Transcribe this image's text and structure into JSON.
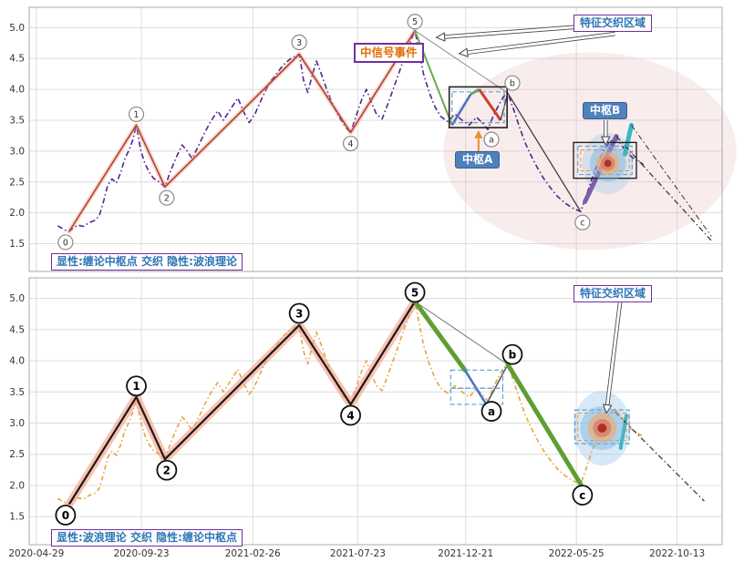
{
  "figure": {
    "bg": "#ffffff",
    "grid_color": "#dcdcdc",
    "border_color": "#a8a8a8",
    "tick_color": "#333333"
  },
  "labels": {
    "top_caption": "显性:缠论中枢点 交织 隐性:波浪理论",
    "bottom_caption": "显性:波浪理论 交织 隐性:缠论中枢点",
    "top_region": "特征交织区域",
    "bottom_region": "特征交织区域",
    "signal_event": "中信号事件",
    "pivot_a": "中枢A",
    "pivot_b": "中枢B"
  },
  "chart_data": {
    "type": "line",
    "x_range_days": [
      -10,
      960
    ],
    "y_range": [
      1.05,
      5.33
    ],
    "y_ticks": [
      1.5,
      2.0,
      2.5,
      3.0,
      3.5,
      4.0,
      4.5,
      5.0
    ],
    "x_ticks": [
      {
        "label": "2020-04-29",
        "day": 0
      },
      {
        "label": "2020-09-23",
        "day": 147
      },
      {
        "label": "2021-02-26",
        "day": 303
      },
      {
        "label": "2021-07-23",
        "day": 450
      },
      {
        "label": "2021-12-21",
        "day": 601
      },
      {
        "label": "2022-05-25",
        "day": 756
      },
      {
        "label": "2022-10-13",
        "day": 897
      }
    ],
    "price": [
      [
        30,
        1.79
      ],
      [
        36,
        1.75
      ],
      [
        42,
        1.71
      ],
      [
        46,
        1.7
      ],
      [
        52,
        1.76
      ],
      [
        58,
        1.8
      ],
      [
        66,
        1.78
      ],
      [
        74,
        1.84
      ],
      [
        82,
        1.88
      ],
      [
        88,
        1.95
      ],
      [
        94,
        2.18
      ],
      [
        100,
        2.45
      ],
      [
        106,
        2.55
      ],
      [
        112,
        2.48
      ],
      [
        118,
        2.65
      ],
      [
        124,
        2.88
      ],
      [
        130,
        3.02
      ],
      [
        135,
        3.18
      ],
      [
        140,
        3.42
      ],
      [
        146,
        3.02
      ],
      [
        152,
        2.8
      ],
      [
        158,
        2.66
      ],
      [
        164,
        2.56
      ],
      [
        172,
        2.5
      ],
      [
        180,
        2.42
      ],
      [
        188,
        2.68
      ],
      [
        196,
        2.9
      ],
      [
        204,
        3.1
      ],
      [
        210,
        3.02
      ],
      [
        218,
        2.88
      ],
      [
        226,
        3.06
      ],
      [
        234,
        3.26
      ],
      [
        244,
        3.48
      ],
      [
        254,
        3.65
      ],
      [
        262,
        3.5
      ],
      [
        272,
        3.68
      ],
      [
        282,
        3.86
      ],
      [
        290,
        3.64
      ],
      [
        298,
        3.46
      ],
      [
        306,
        3.6
      ],
      [
        316,
        3.86
      ],
      [
        326,
        4.1
      ],
      [
        336,
        4.25
      ],
      [
        346,
        4.4
      ],
      [
        356,
        4.5
      ],
      [
        364,
        4.55
      ],
      [
        368,
        4.57
      ],
      [
        374,
        4.15
      ],
      [
        380,
        3.95
      ],
      [
        386,
        4.22
      ],
      [
        392,
        4.46
      ],
      [
        398,
        4.28
      ],
      [
        406,
        4.02
      ],
      [
        414,
        3.78
      ],
      [
        424,
        3.55
      ],
      [
        432,
        3.4
      ],
      [
        440,
        3.3
      ],
      [
        448,
        3.58
      ],
      [
        456,
        3.85
      ],
      [
        462,
        4.0
      ],
      [
        468,
        3.82
      ],
      [
        476,
        3.6
      ],
      [
        484,
        3.52
      ],
      [
        492,
        3.76
      ],
      [
        500,
        4.02
      ],
      [
        508,
        4.28
      ],
      [
        516,
        4.55
      ],
      [
        524,
        4.78
      ],
      [
        530,
        4.95
      ],
      [
        536,
        4.6
      ],
      [
        542,
        4.25
      ],
      [
        550,
        3.95
      ],
      [
        558,
        3.72
      ],
      [
        566,
        3.56
      ],
      [
        576,
        3.48
      ],
      [
        586,
        3.6
      ],
      [
        596,
        3.5
      ],
      [
        606,
        3.42
      ],
      [
        616,
        3.55
      ],
      [
        626,
        3.44
      ],
      [
        632,
        3.35
      ],
      [
        640,
        3.58
      ],
      [
        648,
        3.76
      ],
      [
        654,
        3.88
      ],
      [
        660,
        3.94
      ],
      [
        668,
        3.68
      ],
      [
        676,
        3.4
      ],
      [
        684,
        3.14
      ],
      [
        692,
        2.94
      ],
      [
        700,
        2.76
      ],
      [
        710,
        2.56
      ],
      [
        720,
        2.4
      ],
      [
        730,
        2.26
      ],
      [
        740,
        2.16
      ],
      [
        750,
        2.08
      ],
      [
        762,
        2.02
      ],
      [
        770,
        2.28
      ],
      [
        778,
        2.56
      ],
      [
        786,
        2.8
      ],
      [
        794,
        3.0
      ],
      [
        802,
        3.14
      ],
      [
        810,
        3.22
      ],
      [
        818,
        3.12
      ],
      [
        826,
        2.98
      ],
      [
        834,
        2.9
      ],
      [
        842,
        2.84
      ],
      [
        850,
        2.78
      ]
    ],
    "wave_points": [
      {
        "label": "0",
        "day": 46,
        "value": 1.7
      },
      {
        "label": "1",
        "day": 140,
        "value": 3.42
      },
      {
        "label": "2",
        "day": 180,
        "value": 2.42
      },
      {
        "label": "3",
        "day": 368,
        "value": 4.57
      },
      {
        "label": "4",
        "day": 440,
        "value": 3.3
      },
      {
        "label": "5",
        "day": 530,
        "value": 4.95
      },
      {
        "label": "a",
        "day": 632,
        "value": 3.35
      },
      {
        "label": "b",
        "day": 660,
        "value": 3.94
      },
      {
        "label": "c",
        "day": 762,
        "value": 2.02
      }
    ],
    "label_offsets": {
      "0": [
        -4,
        12
      ],
      "1": [
        0,
        -12
      ],
      "2": [
        2,
        12
      ],
      "3": [
        0,
        -13
      ],
      "4": [
        0,
        12
      ],
      "5": [
        0,
        -10
      ],
      "a": [
        4,
        11
      ],
      "b": [
        5,
        -11
      ],
      "c": [
        2,
        12
      ]
    },
    "panels": [
      {
        "id": "top",
        "price_style": {
          "color": "#51258f",
          "width": 1.6,
          "dash": "6 3 1.5 3"
        },
        "impulse_style": {
          "color": "#a94438",
          "width": 1.6,
          "glow": "rgba(244,150,120,0.40)",
          "glow_width": 5
        },
        "wave_label_style": {
          "r": 8,
          "stroke": "#8a8a8a",
          "sw": 1.2,
          "font": 9.5,
          "color": "#333333",
          "bold": false
        },
        "ellipses": [
          {
            "name": "pink-region-ellipse",
            "day": 775,
            "value": 3.0,
            "rd": 205,
            "rv": 1.6,
            "fill": "rgba(232,186,186,0.28)"
          },
          {
            "name": "bullseye-halo",
            "day": 800,
            "value": 2.8,
            "rd": 36,
            "rv": 0.5,
            "fill": "rgba(155,200,235,0.35)"
          }
        ],
        "segments": [
          {
            "name": "trendline-5-b",
            "pts": [
              [
                530,
                4.95
              ],
              [
                660,
                3.94
              ]
            ],
            "color": "#909090",
            "w": 1
          },
          {
            "name": "green-leg",
            "pts": [
              [
                530,
                4.95
              ],
              [
                582,
                3.42
              ]
            ],
            "color": "#6aa84f",
            "w": 2
          },
          {
            "name": "blue-subwave",
            "pts": [
              [
                582,
                3.42
              ],
              [
                608,
                3.92
              ]
            ],
            "color": "#4472c4",
            "w": 2.5
          },
          {
            "name": "green-subwave",
            "pts": [
              [
                608,
                3.92
              ],
              [
                620,
                4.0
              ]
            ],
            "color": "#6aa84f",
            "w": 3
          },
          {
            "name": "red-subwave",
            "pts": [
              [
                620,
                4.0
              ],
              [
                650,
                3.5
              ]
            ],
            "color": "#cc4125",
            "w": 3
          },
          {
            "name": "black-leg",
            "pts": [
              [
                650,
                3.5
              ],
              [
                660,
                3.94
              ],
              [
                762,
                2.02
              ]
            ],
            "color": "#404040",
            "w": 1.3
          },
          {
            "name": "purple-thick-leg",
            "pts": [
              [
                768,
                2.18
              ],
              [
                812,
                3.24
              ]
            ],
            "color": "#7e5fa8",
            "w": 5,
            "cap": "round"
          },
          {
            "name": "teal-thick-leg",
            "pts": [
              [
                824,
                2.95
              ],
              [
                833,
                3.42
              ]
            ],
            "color": "#35b8c8",
            "w": 5,
            "cap": "round"
          },
          {
            "name": "forecast-line",
            "pts": [
              [
                812,
                3.24
              ],
              [
                945,
                1.55
              ]
            ],
            "color": "#303030",
            "w": 1.2,
            "dash": "6 3 1.5 3"
          },
          {
            "name": "forecast-line-2",
            "pts": [
              [
                833,
                3.42
              ],
              [
                945,
                1.62
              ]
            ],
            "color": "#303030",
            "w": 1,
            "dash": "6 3 1.5 3"
          }
        ],
        "rects": [
          {
            "name": "pivot-a-box",
            "d": [
              578,
              659
            ],
            "v": [
              3.38,
              4.04
            ],
            "color": "#222222",
            "w": 1.6
          },
          {
            "name": "pivot-a-range",
            "d": [
              582,
              655
            ],
            "v": [
              3.46,
              3.96
            ],
            "color": "#5b9bd5",
            "w": 1.2,
            "dash": "5 3"
          },
          {
            "name": "pivot-b-box",
            "d": [
              752,
              840
            ],
            "v": [
              2.56,
              3.14
            ],
            "color": "#222222",
            "w": 1.4
          },
          {
            "name": "pivot-b-range",
            "d": [
              758,
              834
            ],
            "v": [
              2.62,
              3.08
            ],
            "color": "#5b9bd5",
            "w": 1.1,
            "dash": "5 3"
          },
          {
            "name": "pivot-b-orange",
            "d": [
              762,
              830
            ],
            "v": [
              2.68,
              3.02
            ],
            "color": "#e69138",
            "w": 1,
            "dash": "4 3"
          }
        ],
        "bullseye": {
          "day": 800,
          "value": 2.8,
          "rings": [
            {
              "r": 20,
              "c": "rgba(120,180,225,0.45)"
            },
            {
              "r": 13,
              "c": "rgba(240,170,110,0.65)"
            },
            {
              "r": 8,
              "c": "rgba(220,120,100,0.75)"
            },
            {
              "r": 4,
              "c": "rgba(170,45,35,0.95)"
            }
          ]
        },
        "arrows": [
          {
            "from": [
              812,
              5.06
            ],
            "to": [
              560,
              4.84
            ],
            "kind": "hollow"
          },
          {
            "from": [
              810,
              4.9
            ],
            "to": [
              592,
              4.58
            ],
            "kind": "hollow"
          },
          {
            "from": [
              797,
              3.5
            ],
            "to": [
              797,
              3.1
            ],
            "kind": "hollow"
          },
          {
            "from": [
              619,
              2.96
            ],
            "to": [
              619,
              3.34
            ],
            "kind": "orange"
          }
        ]
      },
      {
        "id": "bottom",
        "price_style": {
          "color": "#e8a33d",
          "width": 1.6,
          "dash": "5 3 1.5 3"
        },
        "impulse_style": {
          "color": "#1a1a1a",
          "width": 2.2,
          "glow": "rgba(246,153,127,0.60)",
          "glow_width": 9
        },
        "wave_label_style": {
          "r": 10.5,
          "stroke": "#111111",
          "sw": 1.8,
          "font": 12,
          "color": "#000000",
          "bold": true
        },
        "ellipses": [
          {
            "name": "bullseye-halo",
            "day": 792,
            "value": 2.92,
            "rd": 40,
            "rv": 0.6,
            "fill": "rgba(155,200,235,0.40)"
          }
        ],
        "segments": [
          {
            "name": "trendline-5-b",
            "pts": [
              [
                530,
                4.95
              ],
              [
                660,
                3.94
              ]
            ],
            "color": "#777777",
            "w": 1
          },
          {
            "name": "green-leg-1",
            "pts": [
              [
                530,
                4.95
              ],
              [
                600,
                3.85
              ]
            ],
            "color": "#5f9e32",
            "w": 5,
            "cap": "round"
          },
          {
            "name": "blue-subwave",
            "pts": [
              [
                600,
                3.85
              ],
              [
                630,
                3.3
              ]
            ],
            "color": "#4472c4",
            "w": 2.5
          },
          {
            "name": "thin-leg-a-b",
            "pts": [
              [
                630,
                3.3
              ],
              [
                660,
                3.94
              ]
            ],
            "color": "#555555",
            "w": 1.5
          },
          {
            "name": "green-leg-2",
            "pts": [
              [
                660,
                3.94
              ],
              [
                762,
                2.02
              ]
            ],
            "color": "#5f9e32",
            "w": 5,
            "cap": "round"
          },
          {
            "name": "teal-thick-leg",
            "pts": [
              [
                818,
                2.6
              ],
              [
                826,
                3.12
              ]
            ],
            "color": "#35b8c8",
            "w": 4,
            "cap": "round"
          },
          {
            "name": "forecast-line",
            "pts": [
              [
                810,
                3.18
              ],
              [
                935,
                1.75
              ]
            ],
            "color": "#303030",
            "w": 1.2,
            "dash": "6 3 1.5 3"
          }
        ],
        "rects": [
          {
            "name": "range-box-upper",
            "d": [
              580,
              653
            ],
            "v": [
              3.56,
              3.85
            ],
            "color": "#5b9bd5",
            "w": 1.1,
            "dash": "5 3"
          },
          {
            "name": "range-box-lower",
            "d": [
              580,
              653
            ],
            "v": [
              3.3,
              3.56
            ],
            "color": "#5b9bd5",
            "w": 1.1,
            "dash": "5 3"
          },
          {
            "name": "target-range-box",
            "d": [
              754,
              830
            ],
            "v": [
              2.67,
              3.21
            ],
            "color": "#5b9bd5",
            "w": 1.2,
            "dash": "5 3"
          },
          {
            "name": "target-orange-box",
            "d": [
              758,
              826
            ],
            "v": [
              2.72,
              3.16
            ],
            "color": "#e69138",
            "w": 1,
            "dash": "4 3"
          }
        ],
        "bullseye": {
          "day": 792,
          "value": 2.92,
          "rings": [
            {
              "r": 24,
              "c": "rgba(120,180,225,0.45)"
            },
            {
              "r": 16,
              "c": "rgba(240,170,110,0.65)"
            },
            {
              "r": 10,
              "c": "rgba(220,120,100,0.75)"
            },
            {
              "r": 5,
              "c": "rgba(170,45,35,0.95)"
            }
          ]
        },
        "arrows": [
          {
            "from": [
              818,
              5.02
            ],
            "to": [
              798,
              3.16
            ],
            "kind": "hollow"
          }
        ]
      }
    ]
  }
}
